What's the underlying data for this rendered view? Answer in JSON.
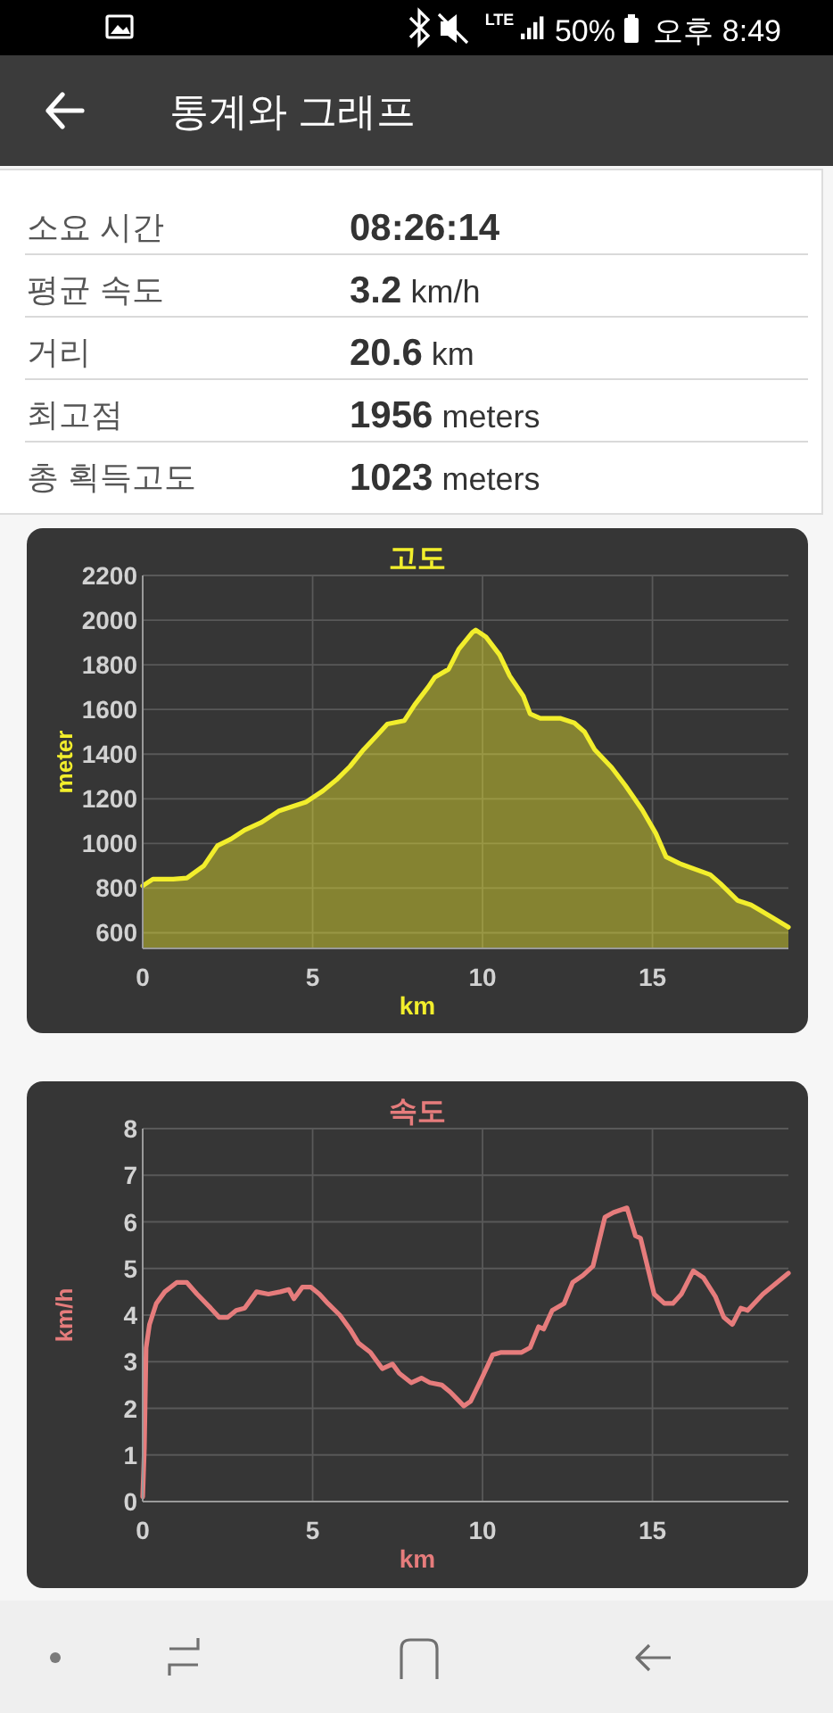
{
  "chart_data": [
    {
      "type": "other",
      "title": "통계와 그래프",
      "annotations": [
        "LTE",
        "50%",
        "오후 8:49",
        "소요 시간",
        "08:26:14",
        "평균 속도",
        "3.2 km/h",
        "거리",
        "20.6 km",
        "최고점",
        "1956 meters",
        "총 획득고도",
        "1023 meters"
      ]
    },
    {
      "type": "area",
      "title": "고도",
      "xlabel": "km",
      "ylabel": "meter",
      "x": [
        0,
        0.3,
        0.9,
        1.3,
        1.8,
        2.2,
        2.6,
        3.0,
        3.5,
        4.0,
        4.3,
        4.8,
        5.3,
        5.7,
        6.1,
        6.5,
        6.9,
        7.2,
        7.7,
        8.0,
        8.4,
        8.6,
        9.0,
        9.3,
        9.7,
        9.8,
        10.1,
        10.5,
        10.8,
        11.2,
        11.4,
        11.7,
        12.3,
        12.7,
        13.0,
        13.3,
        13.8,
        14.2,
        14.7,
        15.1,
        15.4,
        15.8,
        16.7,
        17.0,
        17.5,
        17.9,
        18.4,
        19.0
      ],
      "series": [
        {
          "color": "#f2ee2c",
          "values": [
            810,
            840,
            840,
            845,
            900,
            990,
            1020,
            1060,
            1095,
            1145,
            1160,
            1185,
            1235,
            1285,
            1345,
            1420,
            1485,
            1535,
            1550,
            1620,
            1700,
            1745,
            1780,
            1870,
            1945,
            1956,
            1925,
            1845,
            1750,
            1660,
            1580,
            1560,
            1560,
            1540,
            1500,
            1420,
            1340,
            1260,
            1150,
            1045,
            940,
            910,
            860,
            820,
            745,
            725,
            680,
            625
          ]
        }
      ],
      "xlim": [
        0,
        19
      ],
      "ylim": [
        530,
        2200
      ],
      "xticks": [
        0,
        5,
        10,
        15
      ],
      "yticks": [
        600,
        800,
        1000,
        1200,
        1400,
        1600,
        1800,
        2000,
        2200
      ],
      "grid": true
    },
    {
      "type": "line",
      "title": "속도",
      "xlabel": "km",
      "ylabel": "km/h",
      "x": [
        0,
        0.05,
        0.1,
        0.2,
        0.4,
        0.65,
        1.0,
        1.3,
        1.6,
        2.0,
        2.25,
        2.5,
        2.75,
        3.0,
        3.35,
        3.7,
        4.05,
        4.3,
        4.45,
        4.7,
        4.95,
        5.2,
        5.45,
        5.8,
        6.1,
        6.35,
        6.7,
        7.05,
        7.35,
        7.55,
        7.9,
        8.2,
        8.45,
        8.8,
        9.05,
        9.45,
        9.65,
        9.95,
        10.3,
        10.55,
        10.9,
        11.15,
        11.4,
        11.65,
        11.8,
        12.05,
        12.4,
        12.65,
        12.95,
        13.25,
        13.6,
        13.85,
        14.25,
        14.5,
        14.65,
        15.05,
        15.35,
        15.6,
        15.85,
        16.2,
        16.5,
        16.85,
        17.1,
        17.35,
        17.6,
        17.8,
        18.25,
        19.0
      ],
      "series": [
        {
          "color": "#e67c7c",
          "values": [
            0.1,
            1.15,
            3.3,
            3.8,
            4.25,
            4.5,
            4.7,
            4.7,
            4.45,
            4.15,
            3.95,
            3.95,
            4.1,
            4.15,
            4.5,
            4.45,
            4.5,
            4.55,
            4.35,
            4.6,
            4.6,
            4.45,
            4.25,
            4.0,
            3.7,
            3.4,
            3.2,
            2.85,
            2.95,
            2.75,
            2.55,
            2.65,
            2.55,
            2.5,
            2.35,
            2.05,
            2.15,
            2.6,
            3.15,
            3.2,
            3.2,
            3.2,
            3.3,
            3.75,
            3.7,
            4.1,
            4.25,
            4.7,
            4.85,
            5.05,
            6.1,
            6.2,
            6.3,
            5.7,
            5.65,
            4.45,
            4.25,
            4.25,
            4.45,
            4.95,
            4.8,
            4.4,
            3.95,
            3.8,
            4.15,
            4.1,
            4.45,
            4.9
          ]
        }
      ],
      "xlim": [
        0,
        19
      ],
      "ylim": [
        0,
        8
      ],
      "xticks": [
        0,
        5,
        10,
        15
      ],
      "yticks": [
        0,
        1,
        2,
        3,
        4,
        5,
        6,
        7,
        8
      ],
      "grid": true
    }
  ]
}
